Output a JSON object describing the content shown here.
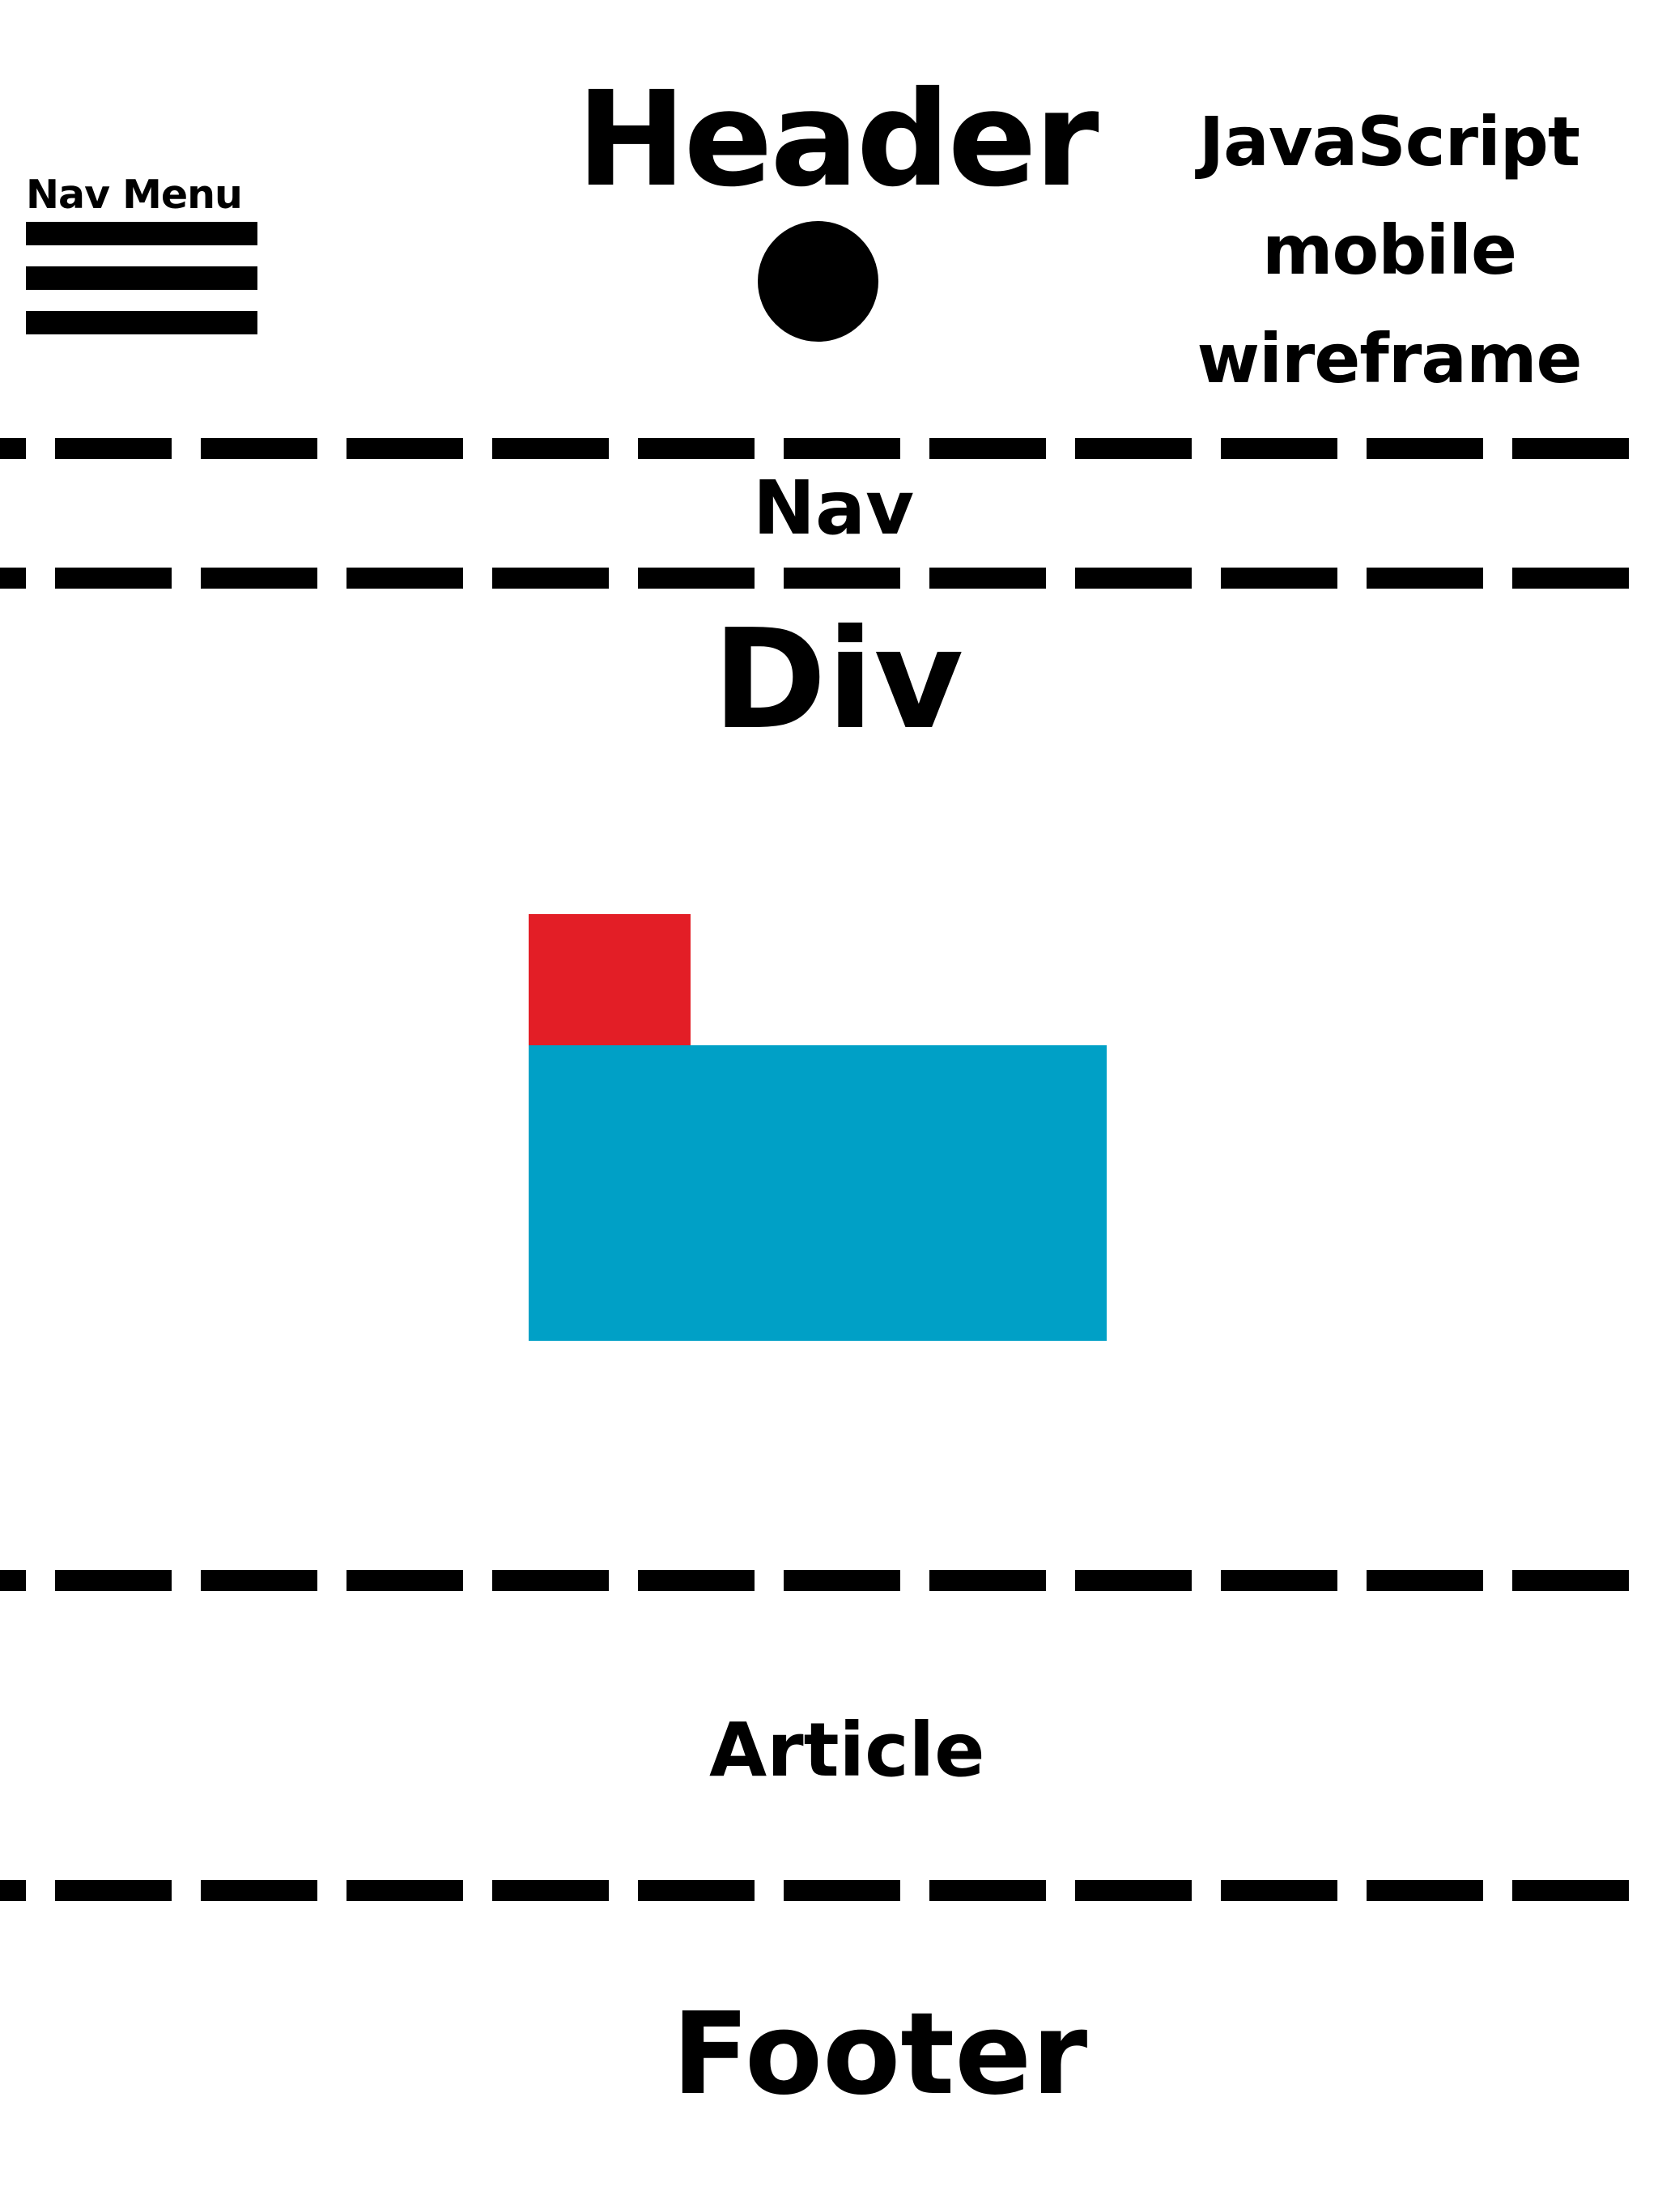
{
  "header": {
    "nav_menu_label": "Nav Menu",
    "title": "Header",
    "subtitle_lines": [
      "JavaScript",
      "mobile",
      "wireframe"
    ]
  },
  "sections": {
    "nav": "Nav",
    "div": "Div",
    "article": "Article",
    "footer": "Footer"
  },
  "icons": {
    "menu": "hamburger-icon",
    "logo": "circle-icon"
  },
  "colors": {
    "ink": "#000000",
    "background": "#ffffff",
    "red_block": "#e31e26",
    "blue_block": "#00a0c6"
  }
}
